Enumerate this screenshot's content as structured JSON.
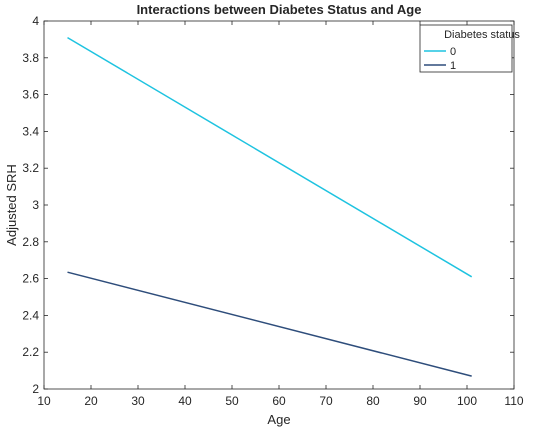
{
  "chart_data": {
    "type": "line",
    "title": "Interactions between Diabetes Status and Age",
    "xlabel": "Age",
    "ylabel": "Adjusted SRH",
    "xlim": [
      10,
      110
    ],
    "ylim": [
      2,
      4
    ],
    "xticks": [
      10,
      20,
      30,
      40,
      50,
      60,
      70,
      80,
      90,
      100,
      110
    ],
    "yticks": [
      2,
      2.2,
      2.4,
      2.6,
      2.8,
      3,
      3.2,
      3.4,
      3.6,
      3.8,
      4
    ],
    "grid": false,
    "legend": {
      "title": "Diabetes status",
      "placement": "top-right"
    },
    "series": [
      {
        "name": "0",
        "color": "#1ec3e0",
        "x": [
          15,
          101
        ],
        "y": [
          3.91,
          2.61
        ]
      },
      {
        "name": "1",
        "color": "#2e4d7b",
        "x": [
          15,
          101
        ],
        "y": [
          2.635,
          2.07
        ]
      }
    ]
  }
}
